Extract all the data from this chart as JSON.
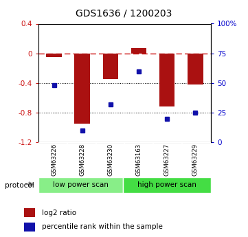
{
  "title": "GDS1636 / 1200203",
  "samples": [
    "GSM63226",
    "GSM63228",
    "GSM63230",
    "GSM63163",
    "GSM63227",
    "GSM63229"
  ],
  "log2_ratio": [
    -0.05,
    -0.95,
    -0.35,
    0.07,
    -0.72,
    -0.42
  ],
  "percentile_rank": [
    48,
    10,
    32,
    60,
    20,
    25
  ],
  "ylim_left": [
    -1.2,
    0.4
  ],
  "yticks_left": [
    0.4,
    0.0,
    -0.4,
    -0.8,
    -1.2
  ],
  "yticks_right": [
    100,
    75,
    50,
    25,
    0
  ],
  "bar_color": "#aa1111",
  "dot_color": "#1111aa",
  "dashed_line_color": "#cc1111",
  "protocol_groups": [
    {
      "label": "low power scan",
      "color": "#88ee88"
    },
    {
      "label": "high power scan",
      "color": "#44dd44"
    }
  ],
  "legend_bar_label": "log2 ratio",
  "legend_dot_label": "percentile rank within the sample",
  "protocol_label": "protocol",
  "background_color": "#ffffff",
  "xlabels_bg": "#cccccc",
  "grid_color": "#000000",
  "tick_label_color_left": "#cc1111",
  "tick_label_color_right": "#0000cc"
}
